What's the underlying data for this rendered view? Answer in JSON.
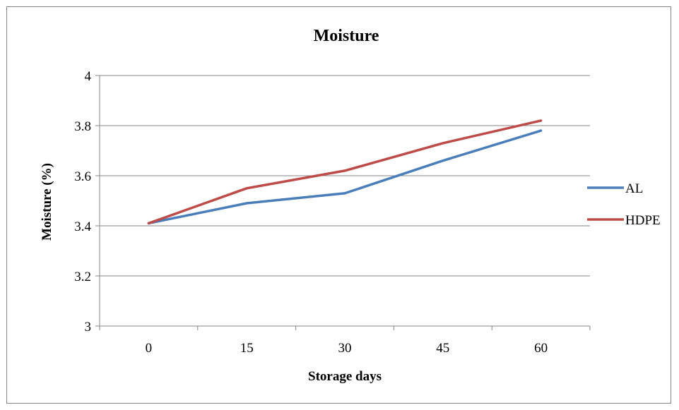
{
  "chart_data": {
    "type": "line",
    "title": "Moisture",
    "xlabel": "Storage days",
    "ylabel": "Moisture  (%)",
    "categories": [
      "0",
      "15",
      "30",
      "45",
      "60"
    ],
    "y_ticks": [
      "3",
      "3.2",
      "3.4",
      "3.6",
      "3.8",
      "4"
    ],
    "ylim": [
      3,
      4
    ],
    "grid": "horizontal major gridlines",
    "legend_position": "right",
    "series": [
      {
        "name": "AL",
        "color": "#4A7EBB",
        "values": [
          3.41,
          3.49,
          3.53,
          3.66,
          3.78
        ]
      },
      {
        "name": "HDPE",
        "color": "#BE4B48",
        "values": [
          3.41,
          3.55,
          3.62,
          3.73,
          3.82
        ]
      }
    ]
  }
}
